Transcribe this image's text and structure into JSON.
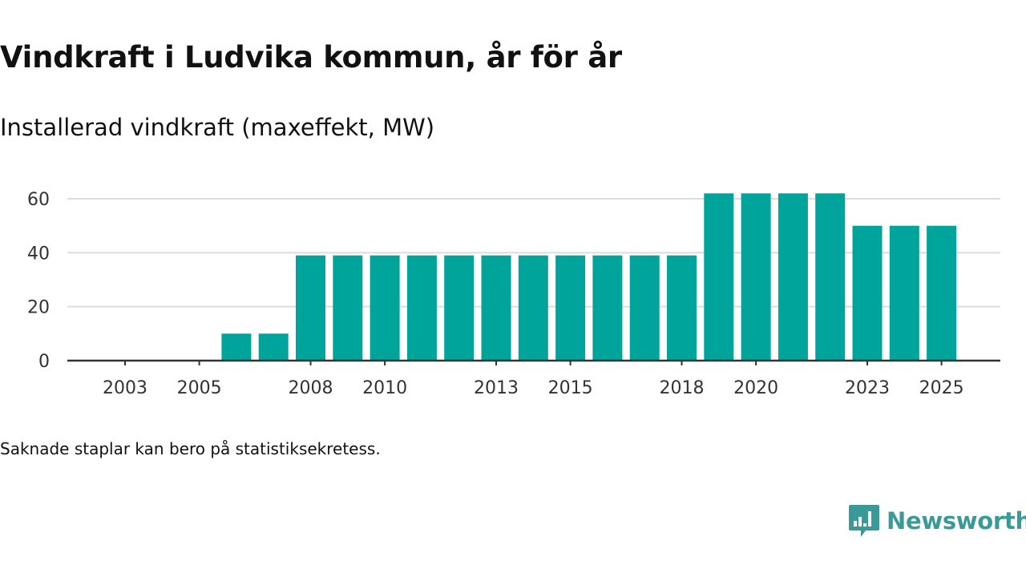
{
  "chart_data": {
    "type": "bar",
    "title": "Vindkraft i Ludvika kommun, år för år",
    "subtitle": "Installerad vindkraft (maxeffekt, MW)",
    "xlabel": "",
    "ylabel": "",
    "categories": [
      "2003",
      "2004",
      "2005",
      "2006",
      "2007",
      "2008",
      "2009",
      "2010",
      "2011",
      "2012",
      "2013",
      "2014",
      "2015",
      "2016",
      "2017",
      "2018",
      "2019",
      "2020",
      "2021",
      "2022",
      "2023",
      "2024",
      "2025"
    ],
    "values": [
      0,
      0,
      0,
      10,
      10,
      39,
      39,
      39,
      39,
      39,
      39,
      39,
      39,
      39,
      39,
      39,
      62,
      62,
      62,
      62,
      50,
      50,
      50
    ],
    "x_tick_labels": [
      "2003",
      "2005",
      "2008",
      "2010",
      "2013",
      "2015",
      "2018",
      "2020",
      "2023",
      "2025"
    ],
    "y_ticks": [
      0,
      20,
      40,
      60
    ],
    "ylim": [
      0,
      62
    ],
    "grid": true,
    "legend": "none",
    "bar_color": "#00a49a"
  },
  "footnote": "Saknade staplar kan bero på statistiksekretess.",
  "brand": {
    "name": "Newsworthy",
    "color": "#3a9a97",
    "icon": "newsworthy-logo-icon"
  }
}
